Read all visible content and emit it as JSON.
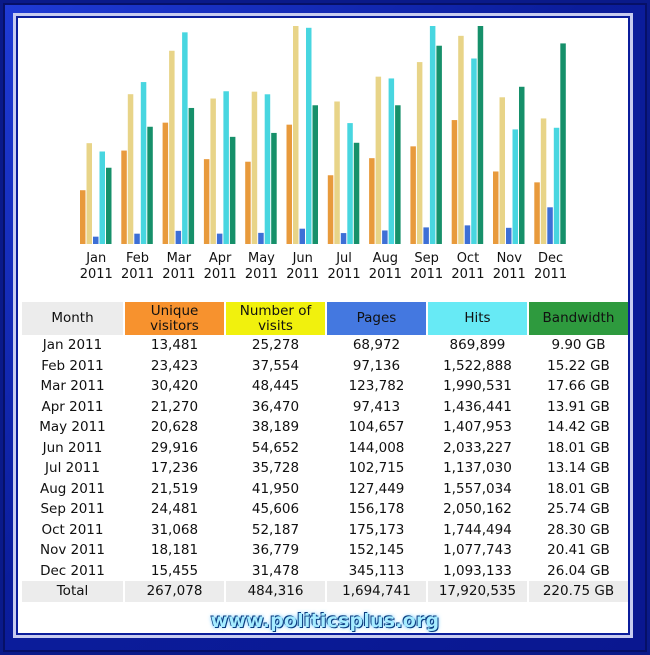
{
  "chart_data": {
    "type": "bar",
    "categories": [
      "Jan",
      "Feb",
      "Mar",
      "Apr",
      "May",
      "Jun",
      "Jul",
      "Aug",
      "Sep",
      "Oct",
      "Nov",
      "Dec"
    ],
    "category_years": [
      "2011",
      "2011",
      "2011",
      "2011",
      "2011",
      "2011",
      "2011",
      "2011",
      "2011",
      "2011",
      "2011",
      "2011"
    ],
    "series": [
      {
        "name": "Unique visitors",
        "color": "#e89a3c",
        "values": [
          13481,
          23423,
          30420,
          21270,
          20628,
          29916,
          17236,
          21519,
          24481,
          31068,
          18181,
          15455
        ]
      },
      {
        "name": "Number of visits",
        "color": "#e8d488",
        "values": [
          25278,
          37554,
          48445,
          36470,
          38189,
          54652,
          35728,
          41950,
          45606,
          52187,
          36779,
          31478
        ]
      },
      {
        "name": "Pages",
        "color": "#3d6fd6",
        "values": [
          68972,
          97136,
          123782,
          97413,
          104657,
          144008,
          102715,
          127449,
          156178,
          175173,
          152145,
          345113
        ]
      },
      {
        "name": "Hits",
        "color": "#48d6e0",
        "values": [
          869899,
          1522888,
          1990531,
          1436441,
          1407953,
          2033227,
          1137030,
          1557034,
          2050162,
          1744494,
          1077743,
          1093133
        ]
      },
      {
        "name": "Bandwidth",
        "color": "#16906a",
        "values": [
          9.9,
          15.22,
          17.66,
          13.91,
          14.42,
          18.01,
          13.14,
          18.01,
          25.74,
          28.3,
          20.41,
          26.04
        ]
      }
    ],
    "grid": false,
    "legend": "none"
  },
  "table": {
    "headers": {
      "month": "Month",
      "visitors": "Unique visitors",
      "visits": "Number of visits",
      "pages": "Pages",
      "hits": "Hits",
      "bandwidth": "Bandwidth"
    },
    "header_colors": {
      "visitors": "#f7922e",
      "visits": "#f1f10d",
      "pages": "#4478e0",
      "hits": "#67eaf5",
      "bandwidth": "#2e9a3e"
    },
    "rows": [
      {
        "month": "Jan 2011",
        "visitors": "13,481",
        "visits": "25,278",
        "pages": "68,972",
        "hits": "869,899",
        "bandwidth": "9.90 GB"
      },
      {
        "month": "Feb 2011",
        "visitors": "23,423",
        "visits": "37,554",
        "pages": "97,136",
        "hits": "1,522,888",
        "bandwidth": "15.22 GB"
      },
      {
        "month": "Mar 2011",
        "visitors": "30,420",
        "visits": "48,445",
        "pages": "123,782",
        "hits": "1,990,531",
        "bandwidth": "17.66 GB"
      },
      {
        "month": "Apr 2011",
        "visitors": "21,270",
        "visits": "36,470",
        "pages": "97,413",
        "hits": "1,436,441",
        "bandwidth": "13.91 GB"
      },
      {
        "month": "May 2011",
        "visitors": "20,628",
        "visits": "38,189",
        "pages": "104,657",
        "hits": "1,407,953",
        "bandwidth": "14.42 GB"
      },
      {
        "month": "Jun 2011",
        "visitors": "29,916",
        "visits": "54,652",
        "pages": "144,008",
        "hits": "2,033,227",
        "bandwidth": "18.01 GB"
      },
      {
        "month": "Jul 2011",
        "visitors": "17,236",
        "visits": "35,728",
        "pages": "102,715",
        "hits": "1,137,030",
        "bandwidth": "13.14 GB"
      },
      {
        "month": "Aug 2011",
        "visitors": "21,519",
        "visits": "41,950",
        "pages": "127,449",
        "hits": "1,557,034",
        "bandwidth": "18.01 GB"
      },
      {
        "month": "Sep 2011",
        "visitors": "24,481",
        "visits": "45,606",
        "pages": "156,178",
        "hits": "2,050,162",
        "bandwidth": "25.74 GB"
      },
      {
        "month": "Oct 2011",
        "visitors": "31,068",
        "visits": "52,187",
        "pages": "175,173",
        "hits": "1,744,494",
        "bandwidth": "28.30 GB"
      },
      {
        "month": "Nov 2011",
        "visitors": "18,181",
        "visits": "36,779",
        "pages": "152,145",
        "hits": "1,077,743",
        "bandwidth": "20.41 GB"
      },
      {
        "month": "Dec 2011",
        "visitors": "15,455",
        "visits": "31,478",
        "pages": "345,113",
        "hits": "1,093,133",
        "bandwidth": "26.04 GB"
      }
    ],
    "total": {
      "month": "Total",
      "visitors": "267,078",
      "visits": "484,316",
      "pages": "1,694,741",
      "hits": "17,920,535",
      "bandwidth": "220.75 GB"
    }
  },
  "watermark": "www.politicsplus.org"
}
